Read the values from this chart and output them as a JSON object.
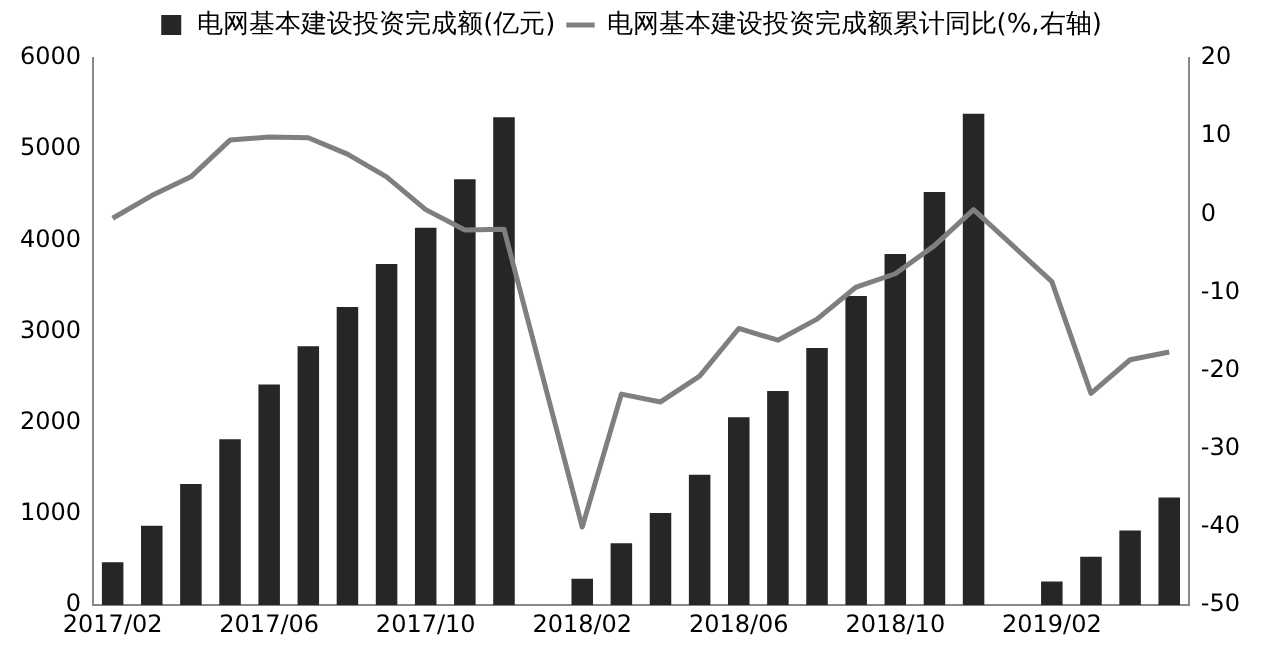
{
  "chart_data": {
    "type": "bar",
    "categories": [
      "2017/02",
      null,
      null,
      null,
      "2017/06",
      null,
      null,
      null,
      "2017/10",
      null,
      null,
      null,
      "2018/02",
      null,
      null,
      null,
      "2018/06",
      null,
      null,
      null,
      "2018/10",
      null,
      null,
      null,
      "2019/02",
      null,
      null,
      null
    ],
    "series": [
      {
        "name": "电网基本建设投资完成额(亿元)",
        "color": "#262626",
        "values": [
          470,
          870,
          1330,
          1820,
          2420,
          2840,
          3270,
          3740,
          4140,
          4670,
          5350,
          null,
          290,
          680,
          1010,
          1430,
          2060,
          2350,
          2820,
          3390,
          3850,
          4530,
          5390,
          null,
          260,
          530,
          820,
          1180
        ]
      },
      {
        "name": "电网基本建设投资完成额累计同比(%,右轴)",
        "type": "line",
        "axis": "y2",
        "color": "#7f7f7f",
        "values": [
          -0.5,
          2.4,
          4.8,
          9.5,
          9.9,
          9.8,
          7.7,
          4.8,
          0.6,
          -2,
          -1.9,
          null,
          -40,
          -23,
          -24,
          -20.7,
          -14.6,
          -16.1,
          -13.4,
          -9.3,
          -7.6,
          -4,
          0.6,
          null,
          -8.6,
          -22.9,
          -18.6,
          -17.6
        ]
      }
    ],
    "ylim": [
      0,
      6000
    ],
    "yticks": [
      0,
      1000,
      2000,
      3000,
      4000,
      5000,
      6000
    ],
    "y2lim": [
      -50,
      20
    ],
    "y2ticks": [
      -50,
      -40,
      -30,
      -20,
      -10,
      0,
      10,
      20
    ],
    "grid": false,
    "legend": "top",
    "marker": "none",
    "line_style": "solid"
  }
}
